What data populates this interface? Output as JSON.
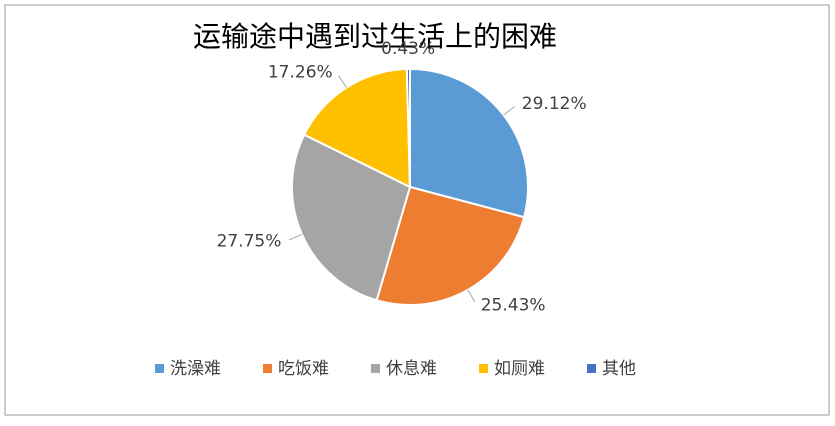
{
  "chart_data": {
    "type": "pie",
    "title": "运输途中遇到过生活上的困难",
    "categories": [
      "洗澡难",
      "吃饭难",
      "休息难",
      "如厕难",
      "其他"
    ],
    "values": [
      29.12,
      25.43,
      27.75,
      17.26,
      0.43
    ],
    "value_labels": [
      "29.12%",
      "25.43%",
      "27.75%",
      "17.26%",
      "0.43%"
    ],
    "colors": [
      "#5b9bd5",
      "#ed7d31",
      "#a5a5a5",
      "#ffc000",
      "#4472c4"
    ],
    "legend": "bottom"
  }
}
